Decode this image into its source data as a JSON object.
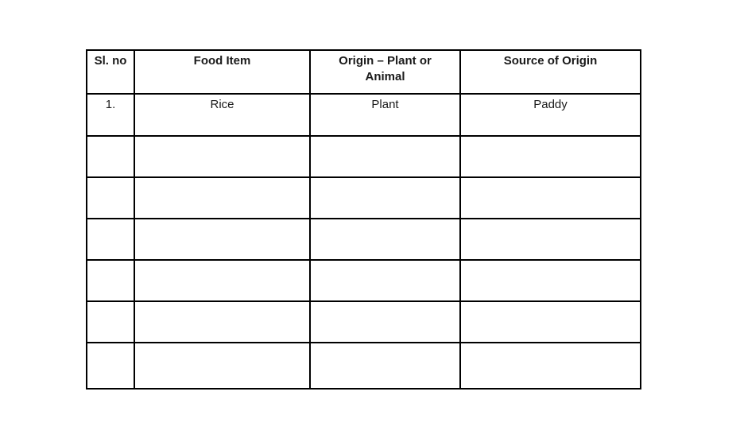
{
  "page": {
    "background_color": "#ffffff"
  },
  "table": {
    "border_color": "#000000",
    "text_color": "#1a1a1a",
    "header": {
      "sl_no": "Sl. no",
      "food_item": "Food Item",
      "origin": "Origin – Plant or Animal",
      "source": "Source of Origin"
    },
    "rows": [
      {
        "sl_no": "1.",
        "food_item": "Rice",
        "origin": "Plant",
        "source": "Paddy"
      },
      {
        "sl_no": "",
        "food_item": "",
        "origin": "",
        "source": ""
      },
      {
        "sl_no": "",
        "food_item": "",
        "origin": "",
        "source": ""
      },
      {
        "sl_no": "",
        "food_item": "",
        "origin": "",
        "source": ""
      },
      {
        "sl_no": "",
        "food_item": "",
        "origin": "",
        "source": ""
      },
      {
        "sl_no": "",
        "food_item": "",
        "origin": "",
        "source": ""
      },
      {
        "sl_no": "",
        "food_item": "",
        "origin": "",
        "source": ""
      }
    ]
  }
}
